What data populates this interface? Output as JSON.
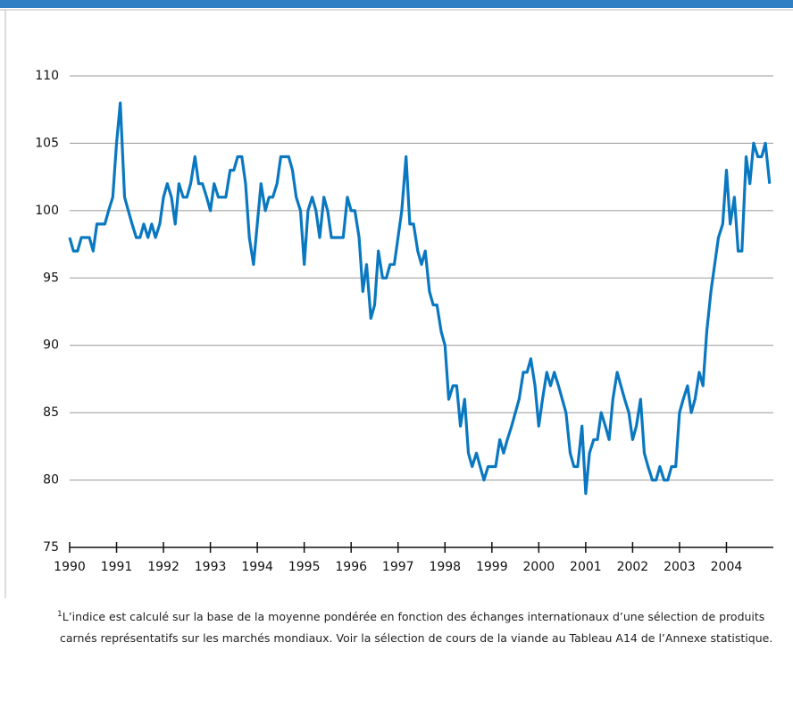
{
  "chart_data": {
    "type": "line",
    "x": [
      1990,
      1990.08,
      1990.17,
      1990.25,
      1990.33,
      1990.42,
      1990.5,
      1990.58,
      1990.67,
      1990.75,
      1990.83,
      1990.92,
      1991,
      1991.08,
      1991.17,
      1991.25,
      1991.33,
      1991.42,
      1991.5,
      1991.58,
      1991.67,
      1991.75,
      1991.83,
      1991.92,
      1992,
      1992.08,
      1992.17,
      1992.25,
      1992.33,
      1992.42,
      1992.5,
      1992.58,
      1992.67,
      1992.75,
      1992.83,
      1992.92,
      1993,
      1993.08,
      1993.17,
      1993.25,
      1993.33,
      1993.42,
      1993.5,
      1993.58,
      1993.67,
      1993.75,
      1993.83,
      1993.92,
      1994,
      1994.08,
      1994.17,
      1994.25,
      1994.33,
      1994.42,
      1994.5,
      1994.58,
      1994.67,
      1994.75,
      1994.83,
      1994.92,
      1995,
      1995.08,
      1995.17,
      1995.25,
      1995.33,
      1995.42,
      1995.5,
      1995.58,
      1995.67,
      1995.75,
      1995.83,
      1995.92,
      1996,
      1996.08,
      1996.17,
      1996.25,
      1996.33,
      1996.42,
      1996.5,
      1996.58,
      1996.67,
      1996.75,
      1996.83,
      1996.92,
      1997,
      1997.08,
      1997.17,
      1997.25,
      1997.33,
      1997.42,
      1997.5,
      1997.58,
      1997.67,
      1997.75,
      1997.83,
      1997.92,
      1998,
      1998.08,
      1998.17,
      1998.25,
      1998.33,
      1998.42,
      1998.5,
      1998.58,
      1998.67,
      1998.75,
      1998.83,
      1998.92,
      1999,
      1999.08,
      1999.17,
      1999.25,
      1999.33,
      1999.42,
      1999.5,
      1999.58,
      1999.67,
      1999.75,
      1999.83,
      1999.92,
      2000,
      2000.08,
      2000.17,
      2000.25,
      2000.33,
      2000.42,
      2000.5,
      2000.58,
      2000.67,
      2000.75,
      2000.83,
      2000.92,
      2001,
      2001.08,
      2001.17,
      2001.25,
      2001.33,
      2001.42,
      2001.5,
      2001.58,
      2001.67,
      2001.75,
      2001.83,
      2001.92,
      2002,
      2002.08,
      2002.17,
      2002.25,
      2002.33,
      2002.42,
      2002.5,
      2002.58,
      2002.67,
      2002.75,
      2002.83,
      2002.92,
      2003,
      2003.08,
      2003.17,
      2003.25,
      2003.33,
      2003.42,
      2003.5,
      2003.58,
      2003.67,
      2003.75,
      2003.83,
      2003.92,
      2004,
      2004.08,
      2004.17,
      2004.25,
      2004.33,
      2004.42,
      2004.5,
      2004.58,
      2004.67,
      2004.75,
      2004.83,
      2004.92
    ],
    "series": [
      {
        "color": "#0a78c0",
        "values": [
          98,
          97,
          97,
          98,
          98,
          98,
          97,
          99,
          99,
          99,
          100,
          101,
          105,
          108,
          101,
          100,
          99,
          98,
          98,
          99,
          98,
          99,
          98,
          99,
          101,
          102,
          101,
          99,
          102,
          101,
          101,
          102,
          104,
          102,
          102,
          101,
          100,
          102,
          101,
          101,
          101,
          103,
          103,
          104,
          104,
          102,
          98,
          96,
          99,
          102,
          100,
          101,
          101,
          102,
          104,
          104,
          104,
          103,
          101,
          100,
          96,
          100,
          101,
          100,
          98,
          101,
          100,
          98,
          98,
          98,
          98,
          101,
          100,
          100,
          98,
          94,
          96,
          92,
          93,
          97,
          95,
          95,
          96,
          96,
          98,
          100,
          104,
          99,
          99,
          97,
          96,
          97,
          94,
          93,
          93,
          91,
          90,
          86,
          87,
          87,
          84,
          86,
          82,
          81,
          82,
          81,
          80,
          81,
          81,
          81,
          83,
          82,
          83,
          84,
          85,
          86,
          88,
          88,
          89,
          87,
          84,
          86,
          88,
          87,
          88,
          87,
          86,
          85,
          82,
          81,
          81,
          84,
          79,
          82,
          83,
          83,
          85,
          84,
          83,
          86,
          88,
          87,
          86,
          85,
          83,
          84,
          86,
          82,
          81,
          80,
          80,
          81,
          80,
          80,
          81,
          81,
          85,
          86,
          87,
          85,
          86,
          88,
          87,
          91,
          94,
          96,
          98,
          99,
          103,
          99,
          101,
          97,
          97,
          104,
          102,
          105,
          104,
          104,
          105,
          102
        ]
      }
    ],
    "xlim": [
      1990,
      2005
    ],
    "xticks": [
      1990,
      1991,
      1992,
      1993,
      1994,
      1995,
      1996,
      1997,
      1998,
      1999,
      2000,
      2001,
      2002,
      2003,
      2004
    ],
    "ylim": [
      75,
      110
    ],
    "yticks": [
      75,
      80,
      85,
      90,
      95,
      100,
      105,
      110
    ],
    "grid": true,
    "note_marker": "1",
    "note": "L’indice est calculé sur la base de la moyenne pondérée en fonction des échanges internationaux d’une sélection de produits carnés représentatifs sur les marchés mondiaux. Voir la sélection de cours de la viande au Tableau A14 de l’Annexe statistique."
  }
}
